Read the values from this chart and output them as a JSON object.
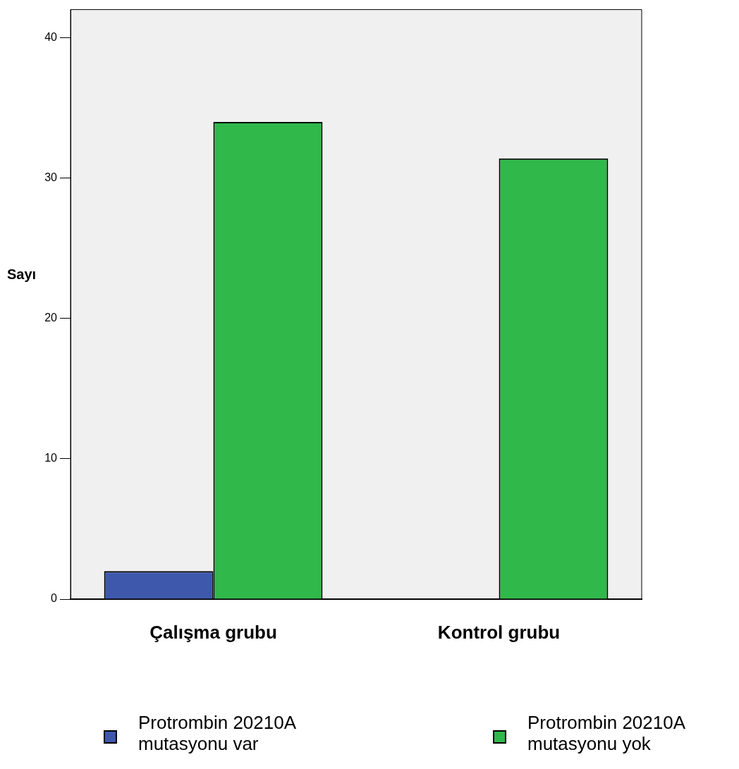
{
  "chart_data": {
    "type": "bar",
    "ylabel": "Sayı",
    "categories": [
      "Çalışma grubu",
      "Kontrol grubu"
    ],
    "series": [
      {
        "name": "Protrombin 20210A mutasyonu var",
        "color": "#3e58ac",
        "values": [
          2,
          0
        ]
      },
      {
        "name": "Protrombin 20210A mutasyonu yok",
        "color": "#30b84a",
        "values": [
          34,
          31.4
        ]
      }
    ],
    "ylim": [
      0,
      42
    ],
    "yticks": [
      0,
      10,
      20,
      30,
      40
    ],
    "legend": "bottom"
  }
}
